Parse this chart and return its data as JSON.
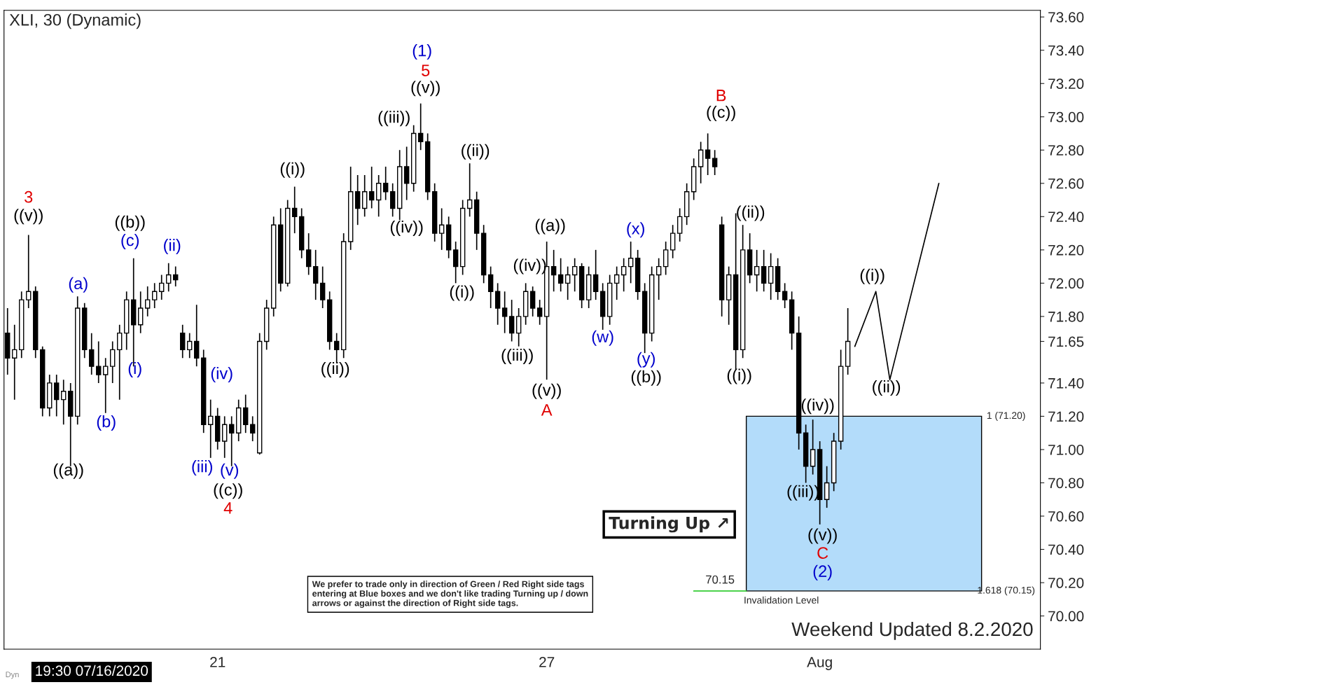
{
  "chart_data": {
    "type": "candlestick",
    "title": "XLI, 30 (Dynamic)",
    "categories": [
      null,
      null,
      null,
      null,
      null,
      null,
      null,
      null,
      null,
      null,
      null,
      null,
      null,
      null,
      null,
      null,
      null,
      null,
      null,
      null,
      null,
      null,
      null,
      null,
      null,
      null,
      null,
      null,
      null,
      null,
      "21",
      null,
      null,
      null,
      null,
      null,
      null,
      null,
      null,
      null,
      null,
      null,
      null,
      null,
      null,
      null,
      null,
      null,
      null,
      null,
      null,
      null,
      null,
      null,
      null,
      null,
      null,
      null,
      null,
      null,
      null,
      null,
      null,
      null,
      null,
      null,
      null,
      null,
      null,
      null,
      null,
      null,
      null,
      null,
      null,
      null,
      null,
      "27",
      null,
      null,
      null,
      null,
      null,
      null,
      null,
      null,
      null,
      null,
      null,
      null,
      null,
      null,
      null,
      null,
      null,
      null,
      null,
      null,
      null,
      null,
      null,
      null,
      null,
      null,
      null,
      null,
      null,
      null,
      null,
      null,
      null,
      null,
      null,
      null,
      null,
      null,
      "Aug",
      null,
      null,
      null,
      null,
      null,
      null,
      null,
      null,
      null,
      null,
      null,
      null,
      null,
      null,
      null,
      null,
      null,
      null,
      null,
      null,
      null,
      null,
      null,
      null,
      null,
      null,
      null,
      null,
      null,
      null,
      null
    ],
    "ohlc": [
      [
        71.7,
        71.85,
        71.45,
        71.55
      ],
      [
        71.55,
        71.75,
        71.3,
        71.6
      ],
      [
        71.6,
        71.95,
        71.55,
        71.9
      ],
      [
        71.9,
        72.29,
        71.85,
        71.95
      ],
      [
        71.95,
        71.98,
        71.55,
        71.6
      ],
      [
        71.6,
        71.62,
        71.2,
        71.25
      ],
      [
        71.25,
        71.45,
        71.2,
        71.4
      ],
      [
        71.4,
        71.45,
        71.2,
        71.3
      ],
      [
        71.3,
        71.42,
        71.15,
        71.35
      ],
      [
        71.35,
        71.4,
        70.9,
        71.2
      ],
      [
        71.2,
        71.92,
        71.15,
        71.85
      ],
      [
        71.85,
        71.88,
        71.55,
        71.6
      ],
      [
        71.6,
        71.7,
        71.45,
        71.5
      ],
      [
        71.5,
        71.65,
        71.4,
        71.45
      ],
      [
        71.45,
        71.55,
        71.22,
        71.5
      ],
      [
        71.5,
        71.65,
        71.4,
        71.6
      ],
      [
        71.6,
        71.75,
        71.3,
        71.7
      ],
      [
        71.7,
        71.95,
        71.6,
        71.9
      ],
      [
        71.9,
        72.15,
        71.5,
        71.75
      ],
      [
        71.75,
        71.95,
        71.7,
        71.85
      ],
      [
        71.85,
        71.98,
        71.8,
        71.9
      ],
      [
        71.9,
        72.0,
        71.85,
        71.95
      ],
      [
        71.95,
        72.05,
        71.9,
        72.0
      ],
      [
        72.0,
        72.12,
        71.95,
        72.05
      ],
      [
        72.05,
        72.1,
        71.98,
        72.02
      ],
      [
        71.7,
        71.75,
        71.55,
        71.6
      ],
      [
        71.6,
        71.7,
        71.55,
        71.65
      ],
      [
        71.65,
        71.87,
        71.5,
        71.55
      ],
      [
        71.55,
        71.6,
        71.1,
        71.15
      ],
      [
        71.15,
        71.3,
        70.95,
        71.2
      ],
      [
        71.2,
        71.25,
        71.0,
        71.05
      ],
      [
        71.05,
        71.2,
        70.95,
        71.15
      ],
      [
        71.15,
        71.2,
        70.9,
        71.1
      ],
      [
        71.1,
        71.3,
        71.05,
        71.25
      ],
      [
        71.25,
        71.33,
        71.1,
        71.15
      ],
      [
        71.15,
        71.2,
        71.05,
        71.1
      ],
      [
        70.98,
        71.7,
        70.97,
        71.65
      ],
      [
        71.65,
        71.9,
        71.6,
        71.85
      ],
      [
        71.85,
        72.4,
        71.8,
        72.35
      ],
      [
        72.35,
        72.45,
        71.95,
        72.0
      ],
      [
        72.0,
        72.5,
        71.98,
        72.45
      ],
      [
        72.45,
        72.58,
        72.3,
        72.4
      ],
      [
        72.4,
        72.45,
        72.15,
        72.2
      ],
      [
        72.2,
        72.3,
        72.05,
        72.1
      ],
      [
        72.1,
        72.2,
        71.9,
        72.0
      ],
      [
        72.0,
        72.1,
        71.85,
        71.9
      ],
      [
        71.9,
        71.95,
        71.6,
        71.65
      ],
      [
        71.65,
        71.7,
        71.52,
        71.6
      ],
      [
        71.6,
        72.3,
        71.55,
        72.25
      ],
      [
        72.25,
        72.7,
        72.2,
        72.55
      ],
      [
        72.55,
        72.65,
        72.35,
        72.45
      ],
      [
        72.45,
        72.65,
        72.4,
        72.55
      ],
      [
        72.55,
        72.7,
        72.45,
        72.5
      ],
      [
        72.5,
        72.65,
        72.4,
        72.6
      ],
      [
        72.6,
        72.7,
        72.5,
        72.55
      ],
      [
        72.55,
        72.6,
        72.4,
        72.45
      ],
      [
        72.45,
        72.8,
        72.38,
        72.7
      ],
      [
        72.7,
        72.82,
        72.5,
        72.6
      ],
      [
        72.6,
        72.95,
        72.55,
        72.9
      ],
      [
        72.9,
        73.08,
        72.8,
        72.85
      ],
      [
        72.85,
        72.9,
        72.5,
        72.55
      ],
      [
        72.55,
        72.6,
        72.25,
        72.3
      ],
      [
        72.3,
        72.45,
        72.2,
        72.35
      ],
      [
        72.35,
        72.4,
        72.15,
        72.2
      ],
      [
        72.2,
        72.25,
        72.0,
        72.1
      ],
      [
        72.1,
        72.5,
        72.05,
        72.45
      ],
      [
        72.45,
        72.72,
        72.4,
        72.5
      ],
      [
        72.5,
        72.55,
        72.2,
        72.3
      ],
      [
        72.3,
        72.35,
        72.0,
        72.05
      ],
      [
        72.05,
        72.1,
        71.85,
        71.95
      ],
      [
        71.95,
        72.0,
        71.75,
        71.85
      ],
      [
        71.85,
        71.95,
        71.7,
        71.8
      ],
      [
        71.8,
        71.9,
        71.65,
        71.7
      ],
      [
        71.7,
        71.85,
        71.62,
        71.8
      ],
      [
        71.8,
        72.0,
        71.75,
        71.95
      ],
      [
        71.95,
        71.98,
        71.8,
        71.85
      ],
      [
        71.85,
        71.9,
        71.75,
        71.8
      ],
      [
        71.8,
        72.25,
        71.42,
        72.1
      ],
      [
        72.1,
        72.2,
        71.95,
        72.05
      ],
      [
        72.05,
        72.15,
        71.95,
        72.0
      ],
      [
        72.0,
        72.1,
        71.9,
        72.05
      ],
      [
        72.05,
        72.15,
        71.95,
        72.1
      ],
      [
        72.1,
        72.12,
        71.85,
        71.9
      ],
      [
        71.9,
        72.1,
        71.85,
        72.05
      ],
      [
        72.05,
        72.2,
        71.9,
        71.95
      ],
      [
        71.95,
        72.0,
        71.72,
        71.8
      ],
      [
        71.8,
        72.05,
        71.75,
        72.0
      ],
      [
        72.0,
        72.1,
        71.9,
        72.05
      ],
      [
        72.05,
        72.15,
        71.95,
        72.1
      ],
      [
        72.1,
        72.25,
        72.0,
        72.15
      ],
      [
        72.15,
        72.2,
        71.9,
        71.95
      ],
      [
        71.95,
        72.0,
        71.58,
        71.7
      ],
      [
        71.7,
        72.1,
        71.65,
        72.05
      ],
      [
        72.05,
        72.15,
        71.9,
        72.1
      ],
      [
        72.1,
        72.25,
        72.05,
        72.2
      ],
      [
        72.2,
        72.35,
        72.15,
        72.3
      ],
      [
        72.3,
        72.45,
        72.25,
        72.4
      ],
      [
        72.4,
        72.6,
        72.35,
        72.55
      ],
      [
        72.55,
        72.75,
        72.5,
        72.7
      ],
      [
        72.7,
        72.85,
        72.6,
        72.8
      ],
      [
        72.8,
        72.9,
        72.65,
        72.75
      ],
      [
        72.75,
        72.8,
        72.65,
        72.7
      ],
      [
        72.35,
        72.4,
        71.8,
        71.9
      ],
      [
        71.9,
        72.1,
        71.75,
        72.05
      ],
      [
        72.05,
        72.42,
        71.48,
        71.6
      ],
      [
        71.6,
        72.35,
        71.55,
        72.2
      ],
      [
        72.2,
        72.3,
        72.0,
        72.05
      ],
      [
        72.05,
        72.2,
        71.95,
        72.1
      ],
      [
        72.1,
        72.2,
        71.95,
        72.0
      ],
      [
        72.0,
        72.18,
        71.9,
        72.1
      ],
      [
        72.1,
        72.15,
        71.9,
        71.95
      ],
      [
        71.95,
        72.0,
        71.85,
        71.9
      ],
      [
        71.9,
        71.95,
        71.6,
        71.7
      ],
      [
        71.7,
        71.8,
        71.0,
        71.1
      ],
      [
        71.1,
        71.15,
        70.8,
        70.9
      ],
      [
        70.9,
        71.18,
        70.85,
        71.0
      ],
      [
        71.0,
        71.05,
        70.55,
        70.7
      ],
      [
        70.7,
        70.9,
        70.65,
        70.8
      ],
      [
        70.8,
        71.1,
        70.75,
        71.05
      ],
      [
        71.05,
        71.6,
        71.0,
        71.5
      ],
      [
        71.5,
        71.85,
        71.45,
        71.65
      ],
      null,
      null,
      null,
      null,
      null,
      null,
      null,
      null,
      null,
      null,
      null,
      null,
      null,
      null,
      null,
      null,
      null,
      null,
      null,
      null,
      null,
      null,
      null,
      null,
      null,
      null,
      null
    ],
    "color": "#000000",
    "series": [
      {
        "type": "line",
        "color": "#000000",
        "values": [
          null,
          null,
          null,
          null,
          null,
          null,
          null,
          null,
          null,
          null,
          null,
          null,
          null,
          null,
          null,
          null,
          null,
          null,
          null,
          null,
          null,
          null,
          null,
          null,
          null,
          null,
          null,
          null,
          null,
          null,
          null,
          null,
          null,
          null,
          null,
          null,
          null,
          null,
          null,
          null,
          null,
          null,
          null,
          null,
          null,
          null,
          null,
          null,
          null,
          null,
          null,
          null,
          null,
          null,
          null,
          null,
          null,
          null,
          null,
          null,
          null,
          null,
          null,
          null,
          null,
          null,
          null,
          null,
          null,
          null,
          null,
          null,
          null,
          null,
          null,
          null,
          null,
          null,
          null,
          null,
          null,
          null,
          null,
          null,
          null,
          null,
          null,
          null,
          null,
          null,
          null,
          null,
          null,
          null,
          null,
          null,
          null,
          null,
          null,
          null,
          null,
          null,
          null,
          null,
          null,
          null,
          null,
          null,
          null,
          null,
          null,
          null,
          null,
          null,
          null,
          null,
          null,
          null,
          null,
          null,
          null,
          71.62,
          null,
          null,
          71.95,
          null,
          71.42,
          null,
          null,
          null,
          null,
          null,
          null,
          72.6,
          null,
          null,
          null,
          null,
          null,
          null,
          null,
          null,
          null,
          null,
          null,
          null,
          null,
          null
        ]
      }
    ],
    "ylim": [
      69.8,
      73.64
    ],
    "yticks": [
      {
        "value": 70.0,
        "label": "70.00"
      },
      {
        "value": 70.2,
        "label": "70.20"
      },
      {
        "value": 70.4,
        "label": "70.40"
      },
      {
        "value": 70.6,
        "label": "70.60"
      },
      {
        "value": 70.8,
        "label": "70.80"
      },
      {
        "value": 71.0,
        "label": "71.00"
      },
      {
        "value": 71.2,
        "label": "71.20"
      },
      {
        "value": 71.4,
        "label": "71.40"
      },
      {
        "value": 71.65,
        "label": "71.65"
      },
      {
        "value": 71.8,
        "label": "71.80"
      },
      {
        "value": 72.0,
        "label": "72.00"
      },
      {
        "value": 72.2,
        "label": "72.20"
      },
      {
        "value": 72.4,
        "label": "72.40"
      },
      {
        "value": 72.6,
        "label": "72.60"
      },
      {
        "value": 72.8,
        "label": "72.80"
      },
      {
        "value": 73.0,
        "label": "73.00"
      },
      {
        "value": 73.2,
        "label": "73.20"
      },
      {
        "value": 73.4,
        "label": "73.40"
      },
      {
        "value": 73.6,
        "label": "73.60"
      }
    ],
    "grid": false,
    "bands": [
      {
        "axis": "y",
        "from": 70.15,
        "to": 71.2,
        "color": "#b3dcfa"
      }
    ],
    "ref_lines": [
      {
        "axis": "y",
        "value": 70.15,
        "label": "70.15",
        "color": "#33cc33"
      }
    ],
    "annotations": [
      "3",
      "((v))",
      "((a))",
      "(a)",
      "(b)",
      "((b))",
      "(c)",
      "(i)",
      "(ii)",
      "(iii)",
      "(iv)",
      "(v)",
      "((c))",
      "4",
      "((i))",
      "((ii))",
      "((iii))",
      "((iv))",
      "(1)",
      "5",
      "((v))",
      "((i))",
      "((ii))",
      "((iii))",
      "((iv))",
      "((v))",
      "A",
      "((a))",
      "(w)",
      "(x)",
      "(y)",
      "((b))",
      "B",
      "((c))",
      "((ii))",
      "((i))",
      "((iv))",
      "((iii))",
      "((v))",
      "C",
      "(2)",
      "((i))",
      "((ii))",
      "1 (71.20)",
      "1.618 (70.15)",
      "Invalidation Level",
      "Turning Up ↗",
      "We prefer to trade only in direction of Green / Red Right side tags entering at Blue boxes and we don't like trading Turning up / down arrows or against the direction of Right side tags.",
      "Weekend Updated 8.2.2020",
      "19:30 07/16/2020",
      "Dyn"
    ]
  }
}
